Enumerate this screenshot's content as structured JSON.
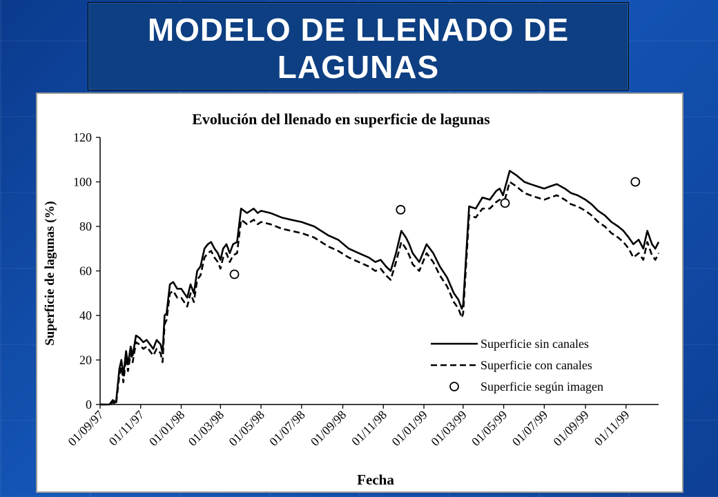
{
  "slide": {
    "title_line1": "MODELO DE LLENADO DE",
    "title_line2": "LAGUNAS"
  },
  "colors": {
    "background": "#1456b8",
    "title_box": "#0d3f82",
    "title_text": "#ffffff",
    "series": "#000000"
  },
  "chart_data": {
    "type": "line",
    "title": "Evolución del llenado en superficie de lagunas",
    "xlabel": "Fecha",
    "ylabel": "Superficie de lagunas (%)",
    "ylim": [
      0,
      120
    ],
    "yticks": [
      0,
      20,
      40,
      60,
      80,
      100,
      120
    ],
    "xlim": [
      "1997-09-01",
      "1999-12-20"
    ],
    "xticks": [
      "01/09/97",
      "01/11/97",
      "01/01/98",
      "01/03/98",
      "01/05/98",
      "01/07/98",
      "01/09/98",
      "01/11/98",
      "01/01/99",
      "01/03/99",
      "01/05/99",
      "01/07/99",
      "01/09/99",
      "01/11/99"
    ],
    "xtick_dates": [
      "1997-09-01",
      "1997-11-01",
      "1998-01-01",
      "1998-03-01",
      "1998-05-01",
      "1998-07-01",
      "1998-09-01",
      "1998-11-01",
      "1999-01-01",
      "1999-03-01",
      "1999-05-01",
      "1999-07-01",
      "1999-09-01",
      "1999-11-01"
    ],
    "grid": false,
    "legend_position": "bottom-right",
    "series": [
      {
        "name": "Superficie sin canales",
        "style": "solid",
        "x": [
          "1997-09-01",
          "1997-09-15",
          "1997-09-20",
          "1997-09-25",
          "1997-09-30",
          "1997-10-03",
          "1997-10-06",
          "1997-10-10",
          "1997-10-13",
          "1997-10-17",
          "1997-10-20",
          "1997-10-25",
          "1997-10-30",
          "1997-11-05",
          "1997-11-10",
          "1997-11-15",
          "1997-11-20",
          "1997-11-25",
          "1997-12-01",
          "1997-12-04",
          "1997-12-07",
          "1997-12-10",
          "1997-12-15",
          "1997-12-20",
          "1997-12-26",
          "1998-01-01",
          "1998-01-10",
          "1998-01-15",
          "1998-01-20",
          "1998-01-25",
          "1998-01-30",
          "1998-02-05",
          "1998-02-10",
          "1998-02-15",
          "1998-02-20",
          "1998-02-25",
          "1998-03-01",
          "1998-03-05",
          "1998-03-10",
          "1998-03-15",
          "1998-03-20",
          "1998-03-26",
          "1998-04-01",
          "1998-04-10",
          "1998-04-20",
          "1998-04-26",
          "1998-05-01",
          "1998-05-15",
          "1998-06-01",
          "1998-06-15",
          "1998-07-01",
          "1998-07-20",
          "1998-08-10",
          "1998-08-25",
          "1998-09-10",
          "1998-09-25",
          "1998-10-10",
          "1998-10-20",
          "1998-10-28",
          "1998-11-05",
          "1998-11-12",
          "1998-11-20",
          "1998-11-28",
          "1998-12-05",
          "1998-12-10",
          "1998-12-15",
          "1998-12-25",
          "1999-01-05",
          "1999-01-15",
          "1999-01-25",
          "1999-02-05",
          "1999-02-15",
          "1999-02-22",
          "1999-02-27",
          "1999-03-01",
          "1999-03-10",
          "1999-03-20",
          "1999-03-30",
          "1999-04-10",
          "1999-04-20",
          "1999-04-25",
          "1999-04-30",
          "1999-05-10",
          "1999-05-20",
          "1999-06-01",
          "1999-06-10",
          "1999-06-20",
          "1999-07-01",
          "1999-07-10",
          "1999-07-20",
          "1999-08-01",
          "1999-08-10",
          "1999-08-20",
          "1999-09-01",
          "1999-09-10",
          "1999-09-20",
          "1999-09-30",
          "1999-10-10",
          "1999-10-20",
          "1999-10-28",
          "1999-11-05",
          "1999-11-12",
          "1999-11-20",
          "1999-11-27",
          "1999-12-03",
          "1999-12-10",
          "1999-12-15",
          "1999-12-20"
        ],
        "y": [
          0,
          0,
          2,
          1,
          16,
          20,
          13,
          24,
          18,
          26,
          22,
          31,
          30,
          28,
          29,
          27,
          25,
          29,
          27,
          23,
          40,
          41,
          54,
          55,
          52,
          52,
          48,
          54,
          50,
          60,
          62,
          70,
          72,
          73,
          70,
          68,
          65,
          70,
          72,
          68,
          72,
          73,
          88,
          86,
          88,
          86,
          87,
          86,
          84,
          83,
          82,
          80,
          76,
          74,
          70,
          68,
          66,
          64,
          65,
          62,
          60,
          68,
          78,
          75,
          72,
          68,
          64,
          72,
          68,
          62,
          57,
          50,
          47,
          43,
          45,
          89,
          88,
          93,
          92,
          96,
          97,
          94,
          105,
          103,
          100,
          99,
          98,
          97,
          98,
          99,
          97,
          95,
          94,
          92,
          90,
          87,
          85,
          82,
          80,
          78,
          75,
          72,
          74,
          70,
          78,
          72,
          70,
          73
        ]
      },
      {
        "name": "Superficie con canales",
        "style": "dashed",
        "x": [
          "1997-09-01",
          "1997-09-15",
          "1997-09-20",
          "1997-09-25",
          "1997-09-30",
          "1997-10-03",
          "1997-10-06",
          "1997-10-10",
          "1997-10-13",
          "1997-10-17",
          "1997-10-20",
          "1997-10-25",
          "1997-10-30",
          "1997-11-05",
          "1997-11-10",
          "1997-11-15",
          "1997-11-20",
          "1997-11-25",
          "1997-12-01",
          "1997-12-04",
          "1997-12-07",
          "1997-12-10",
          "1997-12-15",
          "1997-12-20",
          "1997-12-26",
          "1998-01-01",
          "1998-01-10",
          "1998-01-15",
          "1998-01-20",
          "1998-01-25",
          "1998-01-30",
          "1998-02-05",
          "1998-02-10",
          "1998-02-15",
          "1998-02-20",
          "1998-02-25",
          "1998-03-01",
          "1998-03-05",
          "1998-03-10",
          "1998-03-15",
          "1998-03-20",
          "1998-03-26",
          "1998-04-01",
          "1998-04-10",
          "1998-04-20",
          "1998-04-26",
          "1998-05-01",
          "1998-05-15",
          "1998-06-01",
          "1998-06-15",
          "1998-07-01",
          "1998-07-20",
          "1998-08-10",
          "1998-08-25",
          "1998-09-10",
          "1998-09-25",
          "1998-10-10",
          "1998-10-20",
          "1998-10-28",
          "1998-11-05",
          "1998-11-12",
          "1998-11-20",
          "1998-11-28",
          "1998-12-05",
          "1998-12-10",
          "1998-12-15",
          "1998-12-25",
          "1999-01-05",
          "1999-01-15",
          "1999-01-25",
          "1999-02-05",
          "1999-02-15",
          "1999-02-22",
          "1999-02-27",
          "1999-03-01",
          "1999-03-10",
          "1999-03-20",
          "1999-03-30",
          "1999-04-10",
          "1999-04-20",
          "1999-04-25",
          "1999-04-30",
          "1999-05-10",
          "1999-05-20",
          "1999-06-01",
          "1999-06-10",
          "1999-06-20",
          "1999-07-01",
          "1999-07-10",
          "1999-07-20",
          "1999-08-01",
          "1999-08-10",
          "1999-08-20",
          "1999-09-01",
          "1999-09-10",
          "1999-09-20",
          "1999-09-30",
          "1999-10-10",
          "1999-10-20",
          "1999-10-28",
          "1999-11-05",
          "1999-11-12",
          "1999-11-20",
          "1999-11-27",
          "1999-12-03",
          "1999-12-10",
          "1999-12-15",
          "1999-12-20"
        ],
        "y": [
          0,
          0,
          1,
          0,
          13,
          17,
          10,
          21,
          15,
          23,
          19,
          28,
          27,
          25,
          26,
          24,
          22,
          25,
          23,
          19,
          36,
          38,
          50,
          51,
          48,
          48,
          44,
          50,
          46,
          56,
          58,
          66,
          68,
          69,
          66,
          64,
          61,
          66,
          68,
          64,
          67,
          68,
          83,
          81,
          83,
          81,
          82,
          81,
          79,
          78,
          77,
          75,
          71,
          69,
          66,
          64,
          62,
          60,
          61,
          58,
          56,
          64,
          73,
          70,
          67,
          63,
          60,
          68,
          64,
          58,
          53,
          46,
          43,
          39,
          41,
          85,
          84,
          88,
          88,
          91,
          92,
          89,
          100,
          98,
          95,
          94,
          93,
          92,
          93,
          94,
          92,
          90,
          89,
          87,
          85,
          82,
          80,
          77,
          75,
          73,
          70,
          66,
          68,
          65,
          73,
          67,
          65,
          68
        ]
      },
      {
        "name": "Superficie según imagen",
        "style": "marker",
        "x": [
          "1998-03-22",
          "1998-11-27",
          "1999-05-03",
          "1999-11-15"
        ],
        "y": [
          58.5,
          87.5,
          90.5,
          100
        ]
      }
    ]
  }
}
